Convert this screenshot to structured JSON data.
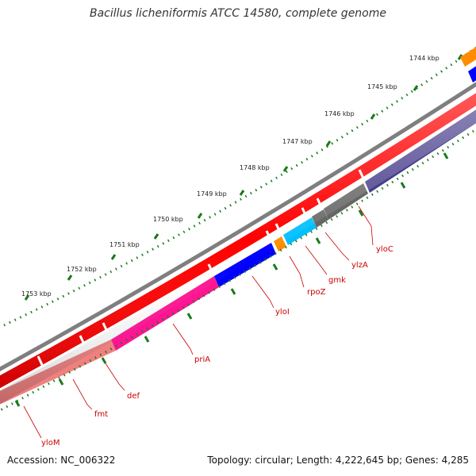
{
  "title": "Bacillus licheniformis ATCC 14580, complete genome",
  "footer": {
    "accession": "Accession: NC_006322",
    "summary": "Topology: circular; Length: 4,222,645 bp; Genes: 4,285"
  },
  "colors": {
    "backbone": "#808080",
    "forward": "#ff0000",
    "tick": "#1a7a1a",
    "label": "#cc0000",
    "kbp_label": "#222222"
  },
  "scale_labels": [
    "1744 kbp",
    "1745 kbp",
    "1746 kbp",
    "1747 kbp",
    "1748 kbp",
    "1749 kbp",
    "1750 kbp",
    "1751 kbp",
    "1752 kbp",
    "1753 kbp"
  ],
  "gene_labels": [
    "yloC",
    "ylzA",
    "gmk",
    "rpoZ",
    "yloI",
    "priA",
    "def",
    "fmt",
    "yloM"
  ],
  "reverse_gene_colors": [
    "#0000ff",
    "#00bfff",
    "#ff8c00",
    "#ff1493",
    "#f08080",
    "#483d8b",
    "#666666"
  ]
}
